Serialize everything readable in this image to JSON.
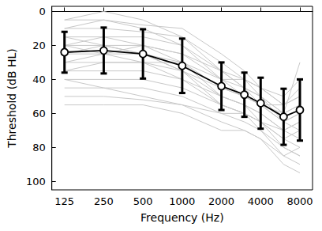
{
  "chart_data": {
    "type": "line",
    "x_label": "Frequency (Hz)",
    "y_label": "Threshold (dB HL)",
    "x": [
      125,
      250,
      500,
      1000,
      2000,
      3000,
      4000,
      6000,
      8000
    ],
    "log": "x",
    "xlim": [
      100,
      10000
    ],
    "xticks": [
      125,
      250,
      500,
      1000,
      2000,
      4000,
      8000
    ],
    "ylim": [
      -3,
      105
    ],
    "yticks": [
      0,
      20,
      40,
      60,
      80,
      100
    ],
    "grid": false,
    "series": [
      {
        "color": "#c8c8c8",
        "values": [
          5,
          5,
          8,
          10,
          25,
          35,
          45,
          55,
          50
        ]
      },
      {
        "color": "#c8c8c8",
        "values": [
          10,
          10,
          12,
          15,
          30,
          40,
          50,
          60,
          55
        ]
      },
      {
        "color": "#c8c8c8",
        "values": [
          15,
          15,
          15,
          20,
          35,
          45,
          50,
          65,
          60
        ]
      },
      {
        "color": "#c8c8c8",
        "values": [
          20,
          20,
          20,
          25,
          40,
          45,
          55,
          65,
          70
        ]
      },
      {
        "color": "#c8c8c8",
        "values": [
          25,
          25,
          25,
          30,
          45,
          50,
          55,
          60,
          55
        ]
      },
      {
        "color": "#c8c8c8",
        "values": [
          30,
          30,
          30,
          35,
          45,
          50,
          55,
          65,
          60
        ]
      },
      {
        "color": "#c8c8c8",
        "values": [
          35,
          35,
          35,
          40,
          50,
          55,
          60,
          70,
          75
        ]
      },
      {
        "color": "#c8c8c8",
        "values": [
          40,
          40,
          40,
          45,
          55,
          60,
          65,
          75,
          80
        ]
      },
      {
        "color": "#c8c8c8",
        "values": [
          45,
          45,
          45,
          50,
          60,
          65,
          70,
          80,
          85
        ]
      },
      {
        "color": "#c8c8c8",
        "values": [
          50,
          50,
          52,
          55,
          65,
          70,
          75,
          85,
          90
        ]
      },
      {
        "color": "#c8c8c8",
        "values": [
          20,
          15,
          20,
          30,
          50,
          55,
          60,
          70,
          65
        ]
      },
      {
        "color": "#c8c8c8",
        "values": [
          10,
          5,
          10,
          20,
          40,
          50,
          55,
          55,
          45
        ]
      },
      {
        "color": "#c8c8c8",
        "values": [
          25,
          20,
          25,
          35,
          50,
          55,
          65,
          80,
          85
        ]
      },
      {
        "color": "#c8c8c8",
        "values": [
          30,
          25,
          20,
          25,
          35,
          40,
          45,
          50,
          40
        ]
      },
      {
        "color": "#c8c8c8",
        "values": [
          55,
          55,
          55,
          60,
          70,
          70,
          75,
          90,
          95
        ]
      },
      {
        "color": "#c8c8c8",
        "values": [
          5,
          0,
          5,
          15,
          35,
          45,
          50,
          60,
          30
        ]
      },
      {
        "color": "#c8c8c8",
        "values": [
          15,
          20,
          25,
          35,
          55,
          60,
          65,
          75,
          70
        ]
      },
      {
        "color": "#c8c8c8",
        "values": [
          35,
          30,
          30,
          30,
          40,
          40,
          45,
          55,
          50
        ]
      },
      {
        "color": "#c8c8c8",
        "values": [
          40,
          45,
          50,
          55,
          60,
          60,
          65,
          70,
          65
        ]
      },
      {
        "color": "#c8c8c8",
        "values": [
          20,
          25,
          30,
          40,
          55,
          60,
          70,
          85,
          80
        ]
      },
      {
        "color": "#000000",
        "marker": "circle",
        "values": [
          24,
          23,
          25,
          32,
          44,
          49,
          54,
          62,
          58
        ],
        "error": [
          12,
          13.5,
          14.5,
          16,
          14,
          13,
          15,
          16.5,
          18
        ]
      }
    ]
  }
}
